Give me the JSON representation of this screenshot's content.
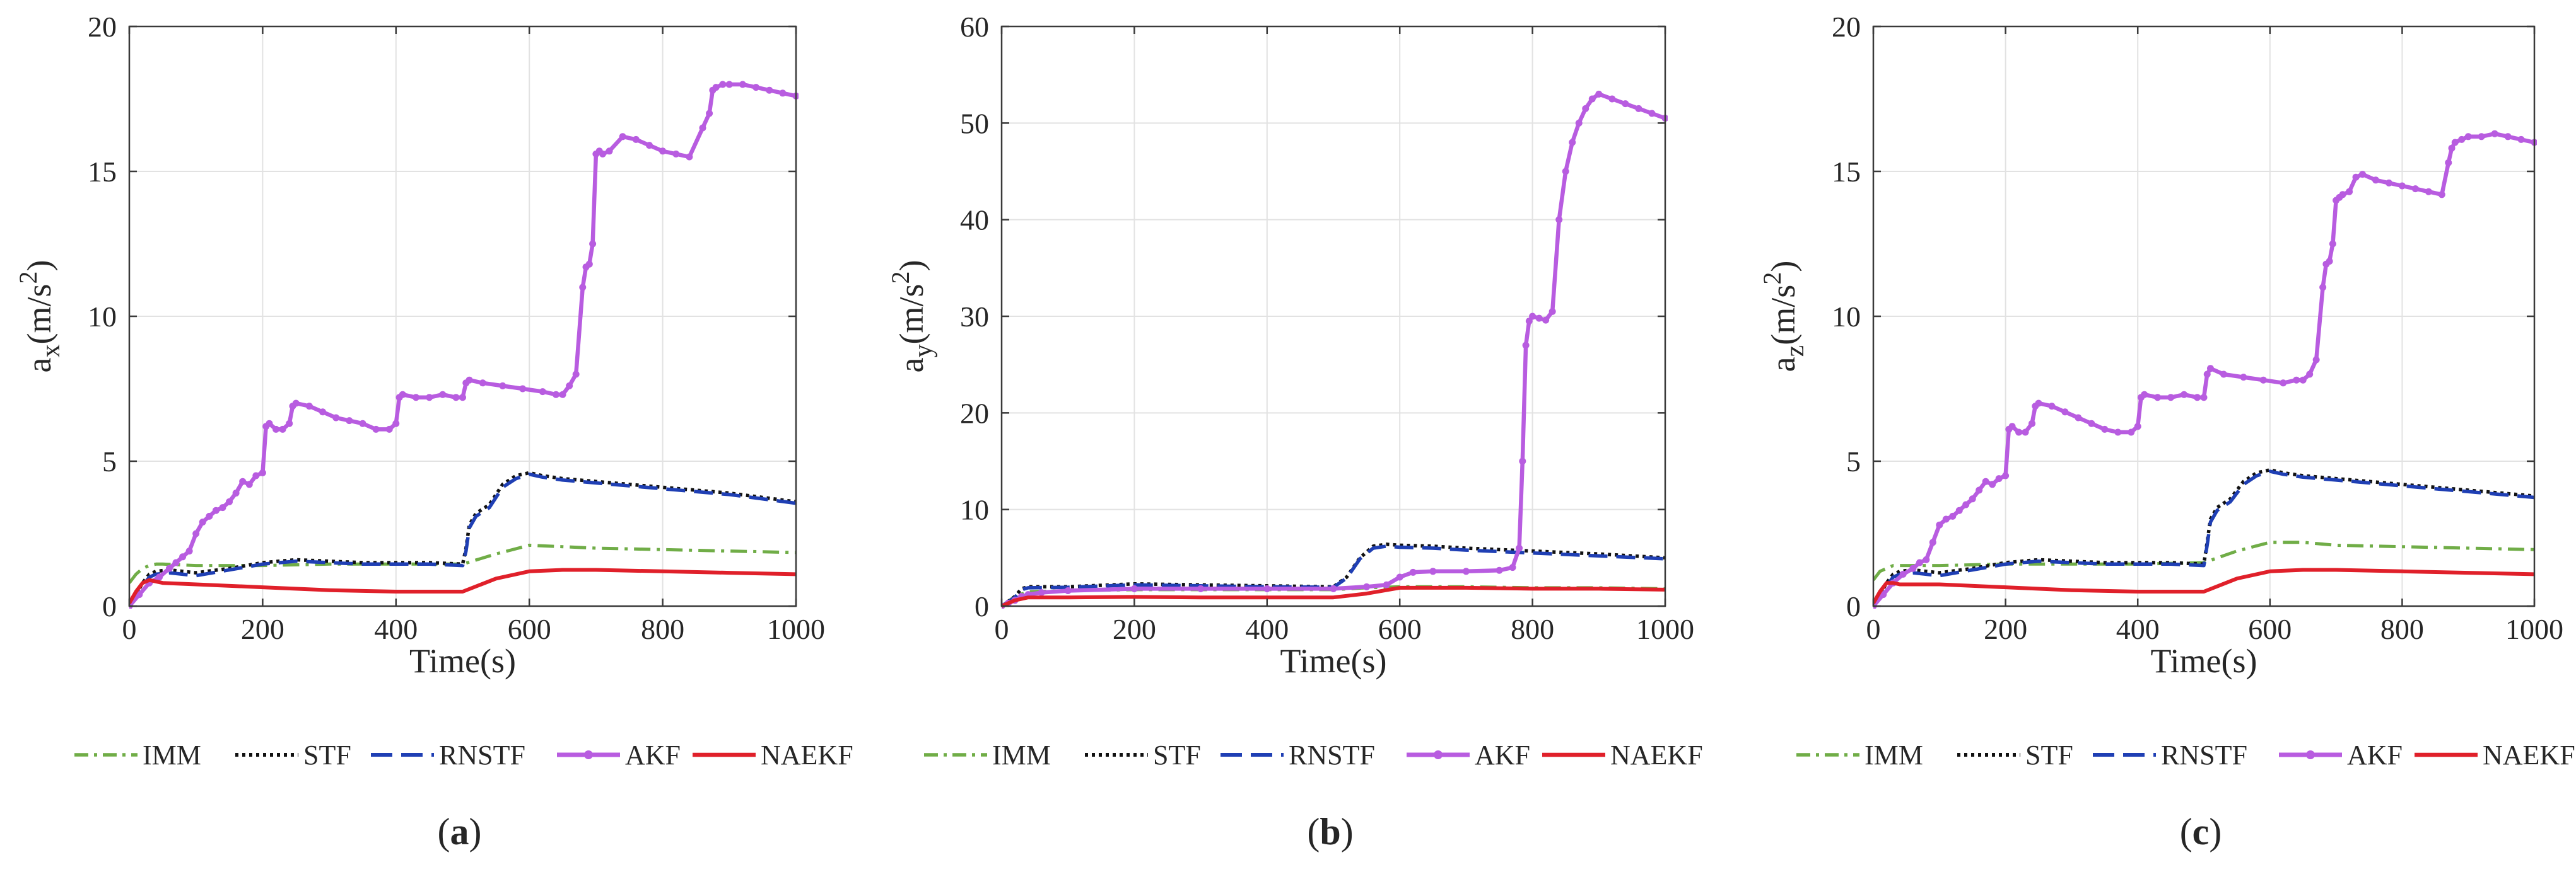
{
  "chart_data": [
    {
      "type": "line",
      "panel_label": "a",
      "xlabel": "Time(s)",
      "ylabel_main": "a",
      "ylabel_sub": "x",
      "ylabel_unit": "(m/s",
      "ylabel_sup": "2",
      "ylabel_close": ")",
      "xlim": [
        0,
        1000
      ],
      "ylim": [
        0,
        20
      ],
      "xticks": [
        "0",
        "200",
        "400",
        "600",
        "800",
        "1000"
      ],
      "yticks": [
        "0",
        "5",
        "10",
        "15",
        "20"
      ],
      "legend": [
        "IMM",
        "STF",
        "RNSTF",
        "AKF",
        "NAEKF"
      ],
      "series": [
        {
          "name": "IMM",
          "color": "#70ad47",
          "x": [
            0,
            10,
            20,
            30,
            40,
            50,
            100,
            200,
            300,
            400,
            500,
            550,
            600,
            650,
            700,
            800,
            900,
            1000
          ],
          "y": [
            0.8,
            1.1,
            1.3,
            1.4,
            1.45,
            1.45,
            1.4,
            1.4,
            1.45,
            1.45,
            1.45,
            1.8,
            2.1,
            2.05,
            2.0,
            1.95,
            1.9,
            1.85
          ]
        },
        {
          "name": "STF",
          "color": "#111111",
          "x": [
            0,
            10,
            20,
            30,
            40,
            60,
            80,
            100,
            150,
            200,
            250,
            300,
            350,
            400,
            450,
            500,
            505,
            510,
            520,
            540,
            560,
            580,
            600,
            620,
            650,
            700,
            800,
            900,
            1000
          ],
          "y": [
            0,
            0.4,
            0.8,
            1.1,
            1.2,
            1.25,
            1.2,
            1.15,
            1.3,
            1.5,
            1.6,
            1.55,
            1.5,
            1.5,
            1.5,
            1.45,
            2.0,
            2.8,
            3.2,
            3.5,
            4.2,
            4.5,
            4.6,
            4.5,
            4.4,
            4.3,
            4.1,
            3.9,
            3.6
          ]
        },
        {
          "name": "RNSTF",
          "color": "#1f3fb4",
          "x": [
            0,
            10,
            20,
            30,
            40,
            60,
            80,
            100,
            150,
            200,
            250,
            300,
            350,
            400,
            450,
            500,
            505,
            510,
            520,
            540,
            560,
            580,
            600,
            620,
            650,
            700,
            800,
            900,
            1000
          ],
          "y": [
            0,
            0.3,
            0.7,
            1.0,
            1.1,
            1.15,
            1.1,
            1.05,
            1.25,
            1.45,
            1.55,
            1.5,
            1.45,
            1.45,
            1.45,
            1.4,
            1.9,
            2.7,
            3.1,
            3.4,
            4.1,
            4.4,
            4.55,
            4.45,
            4.35,
            4.25,
            4.05,
            3.85,
            3.55
          ]
        },
        {
          "name": "AKF",
          "color": "#b85ce0",
          "x": [
            0,
            15,
            30,
            45,
            60,
            70,
            80,
            90,
            100,
            110,
            120,
            130,
            140,
            150,
            160,
            170,
            180,
            190,
            200,
            205,
            210,
            220,
            230,
            240,
            245,
            250,
            270,
            290,
            310,
            330,
            350,
            370,
            390,
            400,
            405,
            410,
            430,
            450,
            470,
            490,
            500,
            505,
            510,
            530,
            560,
            590,
            620,
            640,
            650,
            660,
            670,
            680,
            685,
            690,
            695,
            700,
            705,
            710,
            720,
            740,
            760,
            780,
            800,
            820,
            840,
            860,
            870,
            875,
            880,
            890,
            900,
            920,
            940,
            960,
            980,
            1000
          ],
          "y": [
            0,
            0.4,
            0.8,
            1.0,
            1.3,
            1.5,
            1.7,
            1.9,
            2.5,
            2.9,
            3.1,
            3.3,
            3.4,
            3.6,
            3.9,
            4.3,
            4.2,
            4.5,
            4.6,
            6.2,
            6.3,
            6.1,
            6.1,
            6.3,
            6.9,
            7.0,
            6.9,
            6.7,
            6.5,
            6.4,
            6.3,
            6.1,
            6.1,
            6.3,
            7.2,
            7.3,
            7.2,
            7.2,
            7.3,
            7.2,
            7.2,
            7.7,
            7.8,
            7.7,
            7.6,
            7.5,
            7.4,
            7.3,
            7.3,
            7.6,
            8.0,
            11.0,
            11.7,
            11.8,
            12.5,
            15.6,
            15.7,
            15.6,
            15.7,
            16.2,
            16.1,
            15.9,
            15.7,
            15.6,
            15.5,
            16.5,
            17.0,
            17.8,
            17.9,
            18.0,
            18.0,
            18.0,
            17.9,
            17.8,
            17.7,
            17.6
          ]
        },
        {
          "name": "NAEKF",
          "color": "#e0202a",
          "x": [
            0,
            10,
            20,
            30,
            40,
            50,
            100,
            200,
            300,
            400,
            500,
            550,
            600,
            650,
            700,
            800,
            900,
            1000
          ],
          "y": [
            0.1,
            0.5,
            0.8,
            0.9,
            0.85,
            0.8,
            0.75,
            0.65,
            0.55,
            0.5,
            0.5,
            0.95,
            1.2,
            1.25,
            1.25,
            1.2,
            1.15,
            1.1
          ]
        }
      ]
    },
    {
      "type": "line",
      "panel_label": "b",
      "xlabel": "Time(s)",
      "ylabel_main": "a",
      "ylabel_sub": "y",
      "ylabel_unit": "(m/s",
      "ylabel_sup": "2",
      "ylabel_close": ")",
      "xlim": [
        0,
        1000
      ],
      "ylim": [
        0,
        60
      ],
      "xticks": [
        "0",
        "200",
        "400",
        "600",
        "800",
        "1000"
      ],
      "yticks": [
        "0",
        "10",
        "20",
        "30",
        "40",
        "50",
        "60"
      ],
      "legend": [
        "IMM",
        "STF",
        "RNSTF",
        "AKF",
        "NAEKF"
      ],
      "series": [
        {
          "name": "IMM",
          "color": "#70ad47",
          "x": [
            0,
            20,
            40,
            100,
            200,
            300,
            400,
            500,
            550,
            600,
            700,
            800,
            900,
            1000
          ],
          "y": [
            0,
            1.0,
            1.5,
            1.6,
            1.7,
            1.7,
            1.7,
            1.7,
            1.9,
            2.0,
            2.0,
            1.9,
            1.9,
            1.8
          ]
        },
        {
          "name": "STF",
          "color": "#111111",
          "x": [
            0,
            20,
            30,
            40,
            100,
            200,
            300,
            400,
            500,
            520,
            540,
            560,
            580,
            600,
            650,
            700,
            800,
            900,
            1000
          ],
          "y": [
            0,
            1.0,
            1.8,
            2.0,
            2.0,
            2.3,
            2.2,
            2.1,
            2.0,
            3.0,
            5.0,
            6.2,
            6.4,
            6.3,
            6.2,
            6.0,
            5.7,
            5.4,
            5.0
          ]
        },
        {
          "name": "RNSTF",
          "color": "#1f3fb4",
          "x": [
            0,
            20,
            30,
            40,
            100,
            200,
            300,
            400,
            500,
            520,
            540,
            560,
            580,
            600,
            650,
            700,
            800,
            900,
            1000
          ],
          "y": [
            0,
            0.9,
            1.7,
            1.9,
            1.95,
            2.2,
            2.1,
            2.0,
            1.95,
            2.9,
            4.9,
            6.0,
            6.2,
            6.1,
            6.0,
            5.8,
            5.5,
            5.2,
            4.9
          ]
        },
        {
          "name": "AKF",
          "color": "#b85ce0",
          "x": [
            0,
            10,
            20,
            30,
            40,
            60,
            100,
            200,
            300,
            400,
            500,
            550,
            580,
            600,
            620,
            650,
            700,
            750,
            770,
            780,
            785,
            790,
            795,
            800,
            810,
            820,
            830,
            840,
            850,
            860,
            870,
            880,
            890,
            900,
            920,
            940,
            960,
            980,
            1000
          ],
          "y": [
            0,
            0.3,
            0.6,
            1.0,
            1.2,
            1.4,
            1.6,
            1.8,
            1.8,
            1.8,
            1.8,
            2.0,
            2.2,
            3.0,
            3.5,
            3.6,
            3.6,
            3.7,
            4.0,
            6.0,
            15.0,
            27.0,
            29.5,
            30.0,
            29.8,
            29.6,
            30.5,
            40.0,
            45.0,
            48.0,
            50.0,
            51.5,
            52.5,
            53.0,
            52.5,
            52.0,
            51.5,
            51.0,
            50.5
          ]
        },
        {
          "name": "NAEKF",
          "color": "#e0202a",
          "x": [
            0,
            20,
            40,
            100,
            200,
            300,
            400,
            500,
            550,
            600,
            700,
            800,
            900,
            1000
          ],
          "y": [
            0,
            0.6,
            0.9,
            0.9,
            0.95,
            0.9,
            0.9,
            0.9,
            1.3,
            1.9,
            1.9,
            1.8,
            1.8,
            1.7
          ]
        }
      ]
    },
    {
      "type": "line",
      "panel_label": "c",
      "xlabel": "Time(s)",
      "ylabel_main": "a",
      "ylabel_sub": "z",
      "ylabel_unit": "(m/s",
      "ylabel_sup": "2",
      "ylabel_close": ")",
      "xlim": [
        0,
        1000
      ],
      "ylim": [
        0,
        20
      ],
      "xticks": [
        "0",
        "200",
        "400",
        "600",
        "800",
        "1000"
      ],
      "yticks": [
        "0",
        "5",
        "10",
        "15",
        "20"
      ],
      "legend": [
        "IMM",
        "STF",
        "RNSTF",
        "AKF",
        "NAEKF"
      ],
      "series": [
        {
          "name": "IMM",
          "color": "#70ad47",
          "x": [
            0,
            10,
            20,
            30,
            40,
            50,
            100,
            200,
            300,
            400,
            500,
            550,
            600,
            650,
            700,
            800,
            900,
            1000
          ],
          "y": [
            0.9,
            1.2,
            1.3,
            1.4,
            1.4,
            1.4,
            1.4,
            1.45,
            1.45,
            1.45,
            1.5,
            1.9,
            2.2,
            2.2,
            2.1,
            2.05,
            2.0,
            1.95
          ]
        },
        {
          "name": "STF",
          "color": "#111111",
          "x": [
            0,
            10,
            20,
            30,
            40,
            60,
            80,
            100,
            150,
            200,
            250,
            300,
            350,
            400,
            450,
            500,
            505,
            510,
            520,
            540,
            560,
            580,
            600,
            620,
            650,
            700,
            800,
            900,
            1000
          ],
          "y": [
            0,
            0.4,
            0.8,
            1.1,
            1.2,
            1.25,
            1.2,
            1.15,
            1.3,
            1.5,
            1.6,
            1.55,
            1.5,
            1.5,
            1.5,
            1.45,
            2.2,
            3.0,
            3.4,
            3.7,
            4.3,
            4.6,
            4.7,
            4.6,
            4.5,
            4.4,
            4.2,
            4.0,
            3.8
          ]
        },
        {
          "name": "RNSTF",
          "color": "#1f3fb4",
          "x": [
            0,
            10,
            20,
            30,
            40,
            60,
            80,
            100,
            150,
            200,
            250,
            300,
            350,
            400,
            450,
            500,
            505,
            510,
            520,
            540,
            560,
            580,
            600,
            620,
            650,
            700,
            800,
            900,
            1000
          ],
          "y": [
            0,
            0.3,
            0.7,
            1.0,
            1.1,
            1.15,
            1.1,
            1.05,
            1.25,
            1.45,
            1.55,
            1.5,
            1.45,
            1.45,
            1.45,
            1.4,
            2.1,
            2.9,
            3.3,
            3.6,
            4.2,
            4.5,
            4.65,
            4.55,
            4.45,
            4.35,
            4.15,
            3.95,
            3.75
          ]
        },
        {
          "name": "AKF",
          "color": "#b85ce0",
          "x": [
            0,
            15,
            30,
            45,
            60,
            70,
            80,
            90,
            100,
            110,
            120,
            130,
            140,
            150,
            160,
            170,
            180,
            190,
            200,
            205,
            210,
            220,
            230,
            240,
            245,
            250,
            270,
            290,
            310,
            330,
            350,
            370,
            390,
            400,
            405,
            410,
            430,
            450,
            470,
            490,
            500,
            505,
            510,
            530,
            560,
            590,
            620,
            640,
            650,
            660,
            670,
            680,
            685,
            690,
            695,
            700,
            705,
            710,
            720,
            730,
            740,
            760,
            780,
            800,
            820,
            840,
            860,
            870,
            875,
            880,
            890,
            900,
            920,
            940,
            960,
            980,
            1000
          ],
          "y": [
            0,
            0.4,
            0.8,
            1.1,
            1.3,
            1.5,
            1.6,
            2.2,
            2.8,
            3.0,
            3.1,
            3.3,
            3.5,
            3.7,
            4.0,
            4.3,
            4.2,
            4.4,
            4.5,
            6.1,
            6.2,
            6.0,
            6.0,
            6.3,
            6.9,
            7.0,
            6.9,
            6.7,
            6.5,
            6.3,
            6.1,
            6.0,
            6.0,
            6.2,
            7.2,
            7.3,
            7.2,
            7.2,
            7.3,
            7.2,
            7.2,
            8.0,
            8.2,
            8.0,
            7.9,
            7.8,
            7.7,
            7.8,
            7.8,
            8.0,
            8.5,
            11.0,
            11.8,
            11.9,
            12.5,
            14.0,
            14.1,
            14.2,
            14.3,
            14.8,
            14.9,
            14.7,
            14.6,
            14.5,
            14.4,
            14.3,
            14.2,
            15.3,
            15.8,
            16.0,
            16.1,
            16.2,
            16.2,
            16.3,
            16.2,
            16.1,
            16.0
          ]
        },
        {
          "name": "NAEKF",
          "color": "#e0202a",
          "x": [
            0,
            10,
            20,
            30,
            40,
            50,
            100,
            200,
            300,
            400,
            500,
            550,
            600,
            650,
            700,
            800,
            900,
            1000
          ],
          "y": [
            0.1,
            0.5,
            0.8,
            0.8,
            0.75,
            0.75,
            0.75,
            0.65,
            0.55,
            0.5,
            0.5,
            0.95,
            1.2,
            1.25,
            1.25,
            1.2,
            1.15,
            1.1
          ]
        }
      ]
    }
  ]
}
